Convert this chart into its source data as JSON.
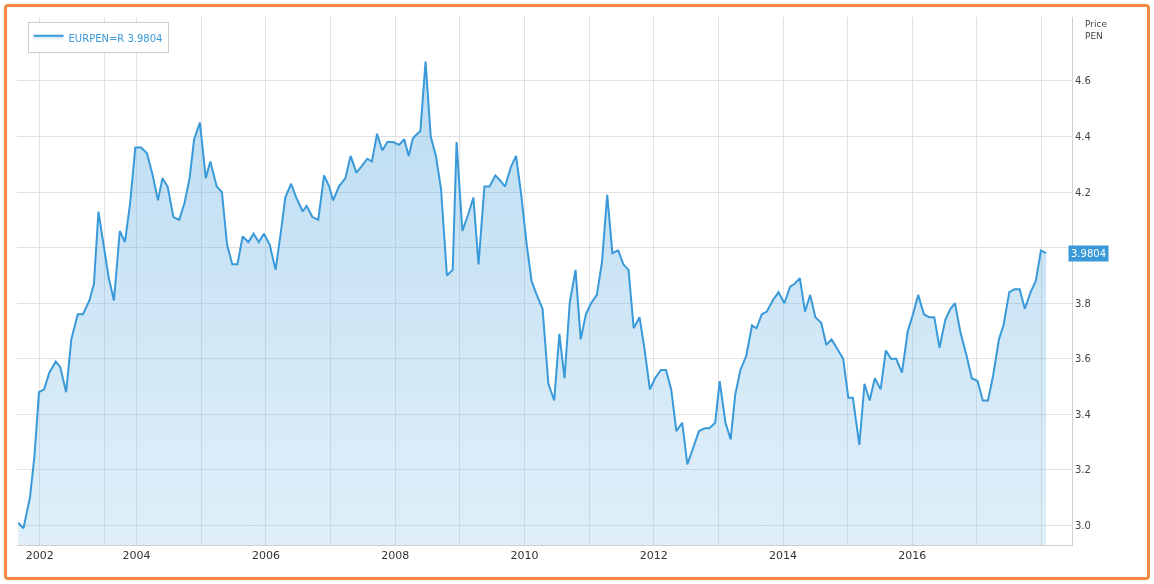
{
  "chart_data": {
    "type": "area",
    "ylabel": "Price\nPEN",
    "legend": "top left",
    "grid": true,
    "marker": "none",
    "line_style": "solid",
    "xlim": [
      2002.15,
      2018.47
    ],
    "ylim": [
      2.93,
      4.83
    ],
    "xticks": [
      {
        "value": 2002.5,
        "label": "2002"
      },
      {
        "value": 2003.5,
        "label": null
      },
      {
        "value": 2004,
        "label": "2004"
      },
      {
        "value": 2005,
        "label": null
      },
      {
        "value": 2006,
        "label": "2006"
      },
      {
        "value": 2007,
        "label": null
      },
      {
        "value": 2008,
        "label": "2008"
      },
      {
        "value": 2009,
        "label": null
      },
      {
        "value": 2010,
        "label": "2010"
      },
      {
        "value": 2011,
        "label": null
      },
      {
        "value": 2012,
        "label": "2012"
      },
      {
        "value": 2013,
        "label": null
      },
      {
        "value": 2014,
        "label": "2014"
      },
      {
        "value": 2015,
        "label": null
      },
      {
        "value": 2016,
        "label": "2016"
      },
      {
        "value": 2017,
        "label": null
      },
      {
        "value": 2018,
        "label": null
      }
    ],
    "yticks": [
      {
        "value": 3,
        "label": "3.0"
      },
      {
        "value": 3.2,
        "label": "3.2"
      },
      {
        "value": 3.4,
        "label": "3.4"
      },
      {
        "value": 3.6,
        "label": "3.6"
      },
      {
        "value": 3.8,
        "label": "3.8"
      },
      {
        "value": 4,
        "label": null
      },
      {
        "value": 4.2,
        "label": "4.2"
      },
      {
        "value": 4.4,
        "label": "4.4"
      },
      {
        "value": 4.6,
        "label": "4.6"
      }
    ],
    "annotations": [
      {
        "text": "3.9804",
        "x": 2018.07,
        "y": 3.9804
      }
    ],
    "series": [
      {
        "name": "EURPEN=R 3.9804",
        "color": "#3a9ad9",
        "x": [
          2002.17,
          2002.25,
          2002.35,
          2002.42,
          2002.49,
          2002.57,
          2002.65,
          2002.75,
          2002.82,
          2002.91,
          2002.99,
          2003.09,
          2003.17,
          2003.27,
          2003.34,
          2003.41,
          2003.49,
          2003.57,
          2003.65,
          2003.74,
          2003.82,
          2003.9,
          2003.98,
          2004.07,
          2004.16,
          2004.25,
          2004.33,
          2004.4,
          2004.48,
          2004.57,
          2004.66,
          2004.74,
          2004.82,
          2004.89,
          2004.98,
          2005.07,
          2005.14,
          2005.24,
          2005.32,
          2005.4,
          2005.48,
          2005.56,
          2005.64,
          2005.73,
          2005.81,
          2005.89,
          2005.97,
          2006.06,
          2006.15,
          2006.24,
          2006.3,
          2006.39,
          2006.47,
          2006.57,
          2006.63,
          2006.72,
          2006.81,
          2006.9,
          2006.98,
          2007.04,
          2007.13,
          2007.23,
          2007.31,
          2007.4,
          2007.47,
          2007.57,
          2007.64,
          2007.72,
          2007.8,
          2007.88,
          2007.97,
          2008.06,
          2008.14,
          2008.21,
          2008.27,
          2008.3,
          2008.39,
          2008.47,
          2008.55,
          2008.63,
          2008.71,
          2008.8,
          2008.89,
          2008.95,
          2009.04,
          2009.13,
          2009.21,
          2009.29,
          2009.38,
          2009.46,
          2009.55,
          2009.63,
          2009.7,
          2009.79,
          2009.87,
          2009.95,
          2010.03,
          2010.11,
          2010.19,
          2010.28,
          2010.37,
          2010.46,
          2010.54,
          2010.62,
          2010.7,
          2010.79,
          2010.87,
          2010.95,
          2011.03,
          2011.12,
          2011.2,
          2011.28,
          2011.36,
          2011.45,
          2011.53,
          2011.61,
          2011.69,
          2011.78,
          2011.86,
          2011.94,
          2012.02,
          2012.11,
          2012.19,
          2012.27,
          2012.35,
          2012.44,
          2012.52,
          2012.61,
          2012.7,
          2012.79,
          2012.86,
          2012.95,
          2013.02,
          2013.11,
          2013.19,
          2013.26,
          2013.34,
          2013.43,
          2013.52,
          2013.59,
          2013.67,
          2013.75,
          2013.84,
          2013.93,
          2014.02,
          2014.11,
          2014.18,
          2014.26,
          2014.34,
          2014.42,
          2014.5,
          2014.59,
          2014.67,
          2014.75,
          2014.83,
          2014.93,
          2015.01,
          2015.08,
          2015.18,
          2015.26,
          2015.34,
          2015.42,
          2015.51,
          2015.59,
          2015.67,
          2015.75,
          2015.84,
          2015.93,
          2016.01,
          2016.09,
          2016.18,
          2016.26,
          2016.34,
          2016.42,
          2016.51,
          2016.59,
          2016.66,
          2016.74,
          2016.84,
          2016.92,
          2017.01,
          2017.09,
          2017.17,
          2017.25,
          2017.34,
          2017.41,
          2017.5,
          2017.58,
          2017.66,
          2017.74,
          2017.83,
          2017.91,
          2017.99,
          2018.07
        ],
        "values": [
          3.01,
          2.99,
          3.1,
          3.25,
          3.48,
          3.49,
          3.55,
          3.59,
          3.57,
          3.48,
          3.67,
          3.76,
          3.76,
          3.81,
          3.87,
          4.13,
          4.01,
          3.89,
          3.81,
          4.06,
          4.02,
          4.16,
          4.36,
          4.36,
          4.34,
          4.26,
          4.17,
          4.25,
          4.22,
          4.11,
          4.1,
          4.16,
          4.25,
          4.39,
          4.45,
          4.25,
          4.31,
          4.22,
          4.2,
          4.01,
          3.94,
          3.94,
          4.04,
          4.02,
          4.05,
          4.02,
          4.05,
          4.01,
          3.92,
          4.07,
          4.18,
          4.23,
          4.18,
          4.13,
          4.15,
          4.11,
          4.1,
          4.26,
          4.22,
          4.17,
          4.22,
          4.25,
          4.33,
          4.27,
          4.29,
          4.32,
          4.31,
          4.41,
          4.35,
          4.38,
          4.38,
          4.37,
          4.39,
          4.33,
          4.39,
          4.4,
          4.42,
          4.67,
          4.4,
          4.33,
          4.21,
          3.9,
          3.92,
          4.38,
          4.06,
          4.12,
          4.18,
          3.94,
          4.22,
          4.22,
          4.26,
          4.24,
          4.22,
          4.29,
          4.33,
          4.19,
          4.02,
          3.88,
          3.83,
          3.78,
          3.51,
          3.45,
          3.69,
          3.53,
          3.8,
          3.92,
          3.67,
          3.76,
          3.8,
          3.83,
          3.95,
          4.19,
          3.98,
          3.99,
          3.94,
          3.92,
          3.71,
          3.75,
          3.63,
          3.49,
          3.53,
          3.56,
          3.56,
          3.49,
          3.34,
          3.37,
          3.22,
          3.28,
          3.34,
          3.35,
          3.35,
          3.37,
          3.52,
          3.37,
          3.31,
          3.47,
          3.56,
          3.61,
          3.72,
          3.71,
          3.76,
          3.77,
          3.81,
          3.84,
          3.8,
          3.86,
          3.87,
          3.89,
          3.77,
          3.83,
          3.75,
          3.73,
          3.65,
          3.67,
          3.64,
          3.6,
          3.46,
          3.46,
          3.29,
          3.51,
          3.45,
          3.53,
          3.49,
          3.63,
          3.6,
          3.6,
          3.55,
          3.7,
          3.76,
          3.83,
          3.76,
          3.75,
          3.75,
          3.64,
          3.74,
          3.78,
          3.8,
          3.7,
          3.61,
          3.53,
          3.52,
          3.45,
          3.45,
          3.54,
          3.67,
          3.72,
          3.84,
          3.85,
          3.85,
          3.78,
          3.84,
          3.88,
          3.99,
          3.98
        ]
      }
    ]
  }
}
